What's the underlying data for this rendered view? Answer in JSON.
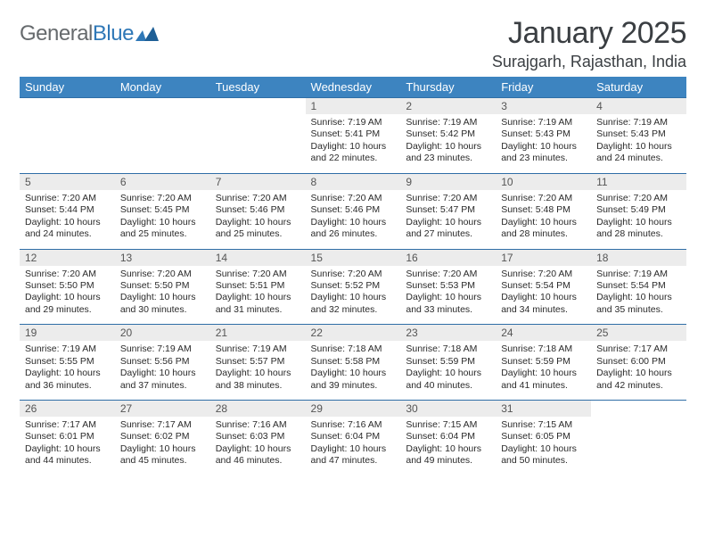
{
  "logo": {
    "word1": "General",
    "word2": "Blue"
  },
  "title": "January 2025",
  "location": "Surajgarh, Rajasthan, India",
  "colors": {
    "header_bg": "#3d84c0",
    "header_text": "#ffffff",
    "rule": "#2f6ea6",
    "daynum_bg": "#ececec",
    "body_text": "#2a2a2a",
    "logo_gray": "#666a6d",
    "logo_blue": "#2f78b7"
  },
  "daynames": [
    "Sunday",
    "Monday",
    "Tuesday",
    "Wednesday",
    "Thursday",
    "Friday",
    "Saturday"
  ],
  "weeks": [
    [
      {
        "n": "",
        "empty": true
      },
      {
        "n": "",
        "empty": true
      },
      {
        "n": "",
        "empty": true
      },
      {
        "n": "1",
        "sunrise": "7:19 AM",
        "sunset": "5:41 PM",
        "dl1": "Daylight: 10 hours",
        "dl2": "and 22 minutes."
      },
      {
        "n": "2",
        "sunrise": "7:19 AM",
        "sunset": "5:42 PM",
        "dl1": "Daylight: 10 hours",
        "dl2": "and 23 minutes."
      },
      {
        "n": "3",
        "sunrise": "7:19 AM",
        "sunset": "5:43 PM",
        "dl1": "Daylight: 10 hours",
        "dl2": "and 23 minutes."
      },
      {
        "n": "4",
        "sunrise": "7:19 AM",
        "sunset": "5:43 PM",
        "dl1": "Daylight: 10 hours",
        "dl2": "and 24 minutes."
      }
    ],
    [
      {
        "n": "5",
        "sunrise": "7:20 AM",
        "sunset": "5:44 PM",
        "dl1": "Daylight: 10 hours",
        "dl2": "and 24 minutes."
      },
      {
        "n": "6",
        "sunrise": "7:20 AM",
        "sunset": "5:45 PM",
        "dl1": "Daylight: 10 hours",
        "dl2": "and 25 minutes."
      },
      {
        "n": "7",
        "sunrise": "7:20 AM",
        "sunset": "5:46 PM",
        "dl1": "Daylight: 10 hours",
        "dl2": "and 25 minutes."
      },
      {
        "n": "8",
        "sunrise": "7:20 AM",
        "sunset": "5:46 PM",
        "dl1": "Daylight: 10 hours",
        "dl2": "and 26 minutes."
      },
      {
        "n": "9",
        "sunrise": "7:20 AM",
        "sunset": "5:47 PM",
        "dl1": "Daylight: 10 hours",
        "dl2": "and 27 minutes."
      },
      {
        "n": "10",
        "sunrise": "7:20 AM",
        "sunset": "5:48 PM",
        "dl1": "Daylight: 10 hours",
        "dl2": "and 28 minutes."
      },
      {
        "n": "11",
        "sunrise": "7:20 AM",
        "sunset": "5:49 PM",
        "dl1": "Daylight: 10 hours",
        "dl2": "and 28 minutes."
      }
    ],
    [
      {
        "n": "12",
        "sunrise": "7:20 AM",
        "sunset": "5:50 PM",
        "dl1": "Daylight: 10 hours",
        "dl2": "and 29 minutes."
      },
      {
        "n": "13",
        "sunrise": "7:20 AM",
        "sunset": "5:50 PM",
        "dl1": "Daylight: 10 hours",
        "dl2": "and 30 minutes."
      },
      {
        "n": "14",
        "sunrise": "7:20 AM",
        "sunset": "5:51 PM",
        "dl1": "Daylight: 10 hours",
        "dl2": "and 31 minutes."
      },
      {
        "n": "15",
        "sunrise": "7:20 AM",
        "sunset": "5:52 PM",
        "dl1": "Daylight: 10 hours",
        "dl2": "and 32 minutes."
      },
      {
        "n": "16",
        "sunrise": "7:20 AM",
        "sunset": "5:53 PM",
        "dl1": "Daylight: 10 hours",
        "dl2": "and 33 minutes."
      },
      {
        "n": "17",
        "sunrise": "7:20 AM",
        "sunset": "5:54 PM",
        "dl1": "Daylight: 10 hours",
        "dl2": "and 34 minutes."
      },
      {
        "n": "18",
        "sunrise": "7:19 AM",
        "sunset": "5:54 PM",
        "dl1": "Daylight: 10 hours",
        "dl2": "and 35 minutes."
      }
    ],
    [
      {
        "n": "19",
        "sunrise": "7:19 AM",
        "sunset": "5:55 PM",
        "dl1": "Daylight: 10 hours",
        "dl2": "and 36 minutes."
      },
      {
        "n": "20",
        "sunrise": "7:19 AM",
        "sunset": "5:56 PM",
        "dl1": "Daylight: 10 hours",
        "dl2": "and 37 minutes."
      },
      {
        "n": "21",
        "sunrise": "7:19 AM",
        "sunset": "5:57 PM",
        "dl1": "Daylight: 10 hours",
        "dl2": "and 38 minutes."
      },
      {
        "n": "22",
        "sunrise": "7:18 AM",
        "sunset": "5:58 PM",
        "dl1": "Daylight: 10 hours",
        "dl2": "and 39 minutes."
      },
      {
        "n": "23",
        "sunrise": "7:18 AM",
        "sunset": "5:59 PM",
        "dl1": "Daylight: 10 hours",
        "dl2": "and 40 minutes."
      },
      {
        "n": "24",
        "sunrise": "7:18 AM",
        "sunset": "5:59 PM",
        "dl1": "Daylight: 10 hours",
        "dl2": "and 41 minutes."
      },
      {
        "n": "25",
        "sunrise": "7:17 AM",
        "sunset": "6:00 PM",
        "dl1": "Daylight: 10 hours",
        "dl2": "and 42 minutes."
      }
    ],
    [
      {
        "n": "26",
        "sunrise": "7:17 AM",
        "sunset": "6:01 PM",
        "dl1": "Daylight: 10 hours",
        "dl2": "and 44 minutes."
      },
      {
        "n": "27",
        "sunrise": "7:17 AM",
        "sunset": "6:02 PM",
        "dl1": "Daylight: 10 hours",
        "dl2": "and 45 minutes."
      },
      {
        "n": "28",
        "sunrise": "7:16 AM",
        "sunset": "6:03 PM",
        "dl1": "Daylight: 10 hours",
        "dl2": "and 46 minutes."
      },
      {
        "n": "29",
        "sunrise": "7:16 AM",
        "sunset": "6:04 PM",
        "dl1": "Daylight: 10 hours",
        "dl2": "and 47 minutes."
      },
      {
        "n": "30",
        "sunrise": "7:15 AM",
        "sunset": "6:04 PM",
        "dl1": "Daylight: 10 hours",
        "dl2": "and 49 minutes."
      },
      {
        "n": "31",
        "sunrise": "7:15 AM",
        "sunset": "6:05 PM",
        "dl1": "Daylight: 10 hours",
        "dl2": "and 50 minutes."
      },
      {
        "n": "",
        "empty": true
      }
    ]
  ]
}
